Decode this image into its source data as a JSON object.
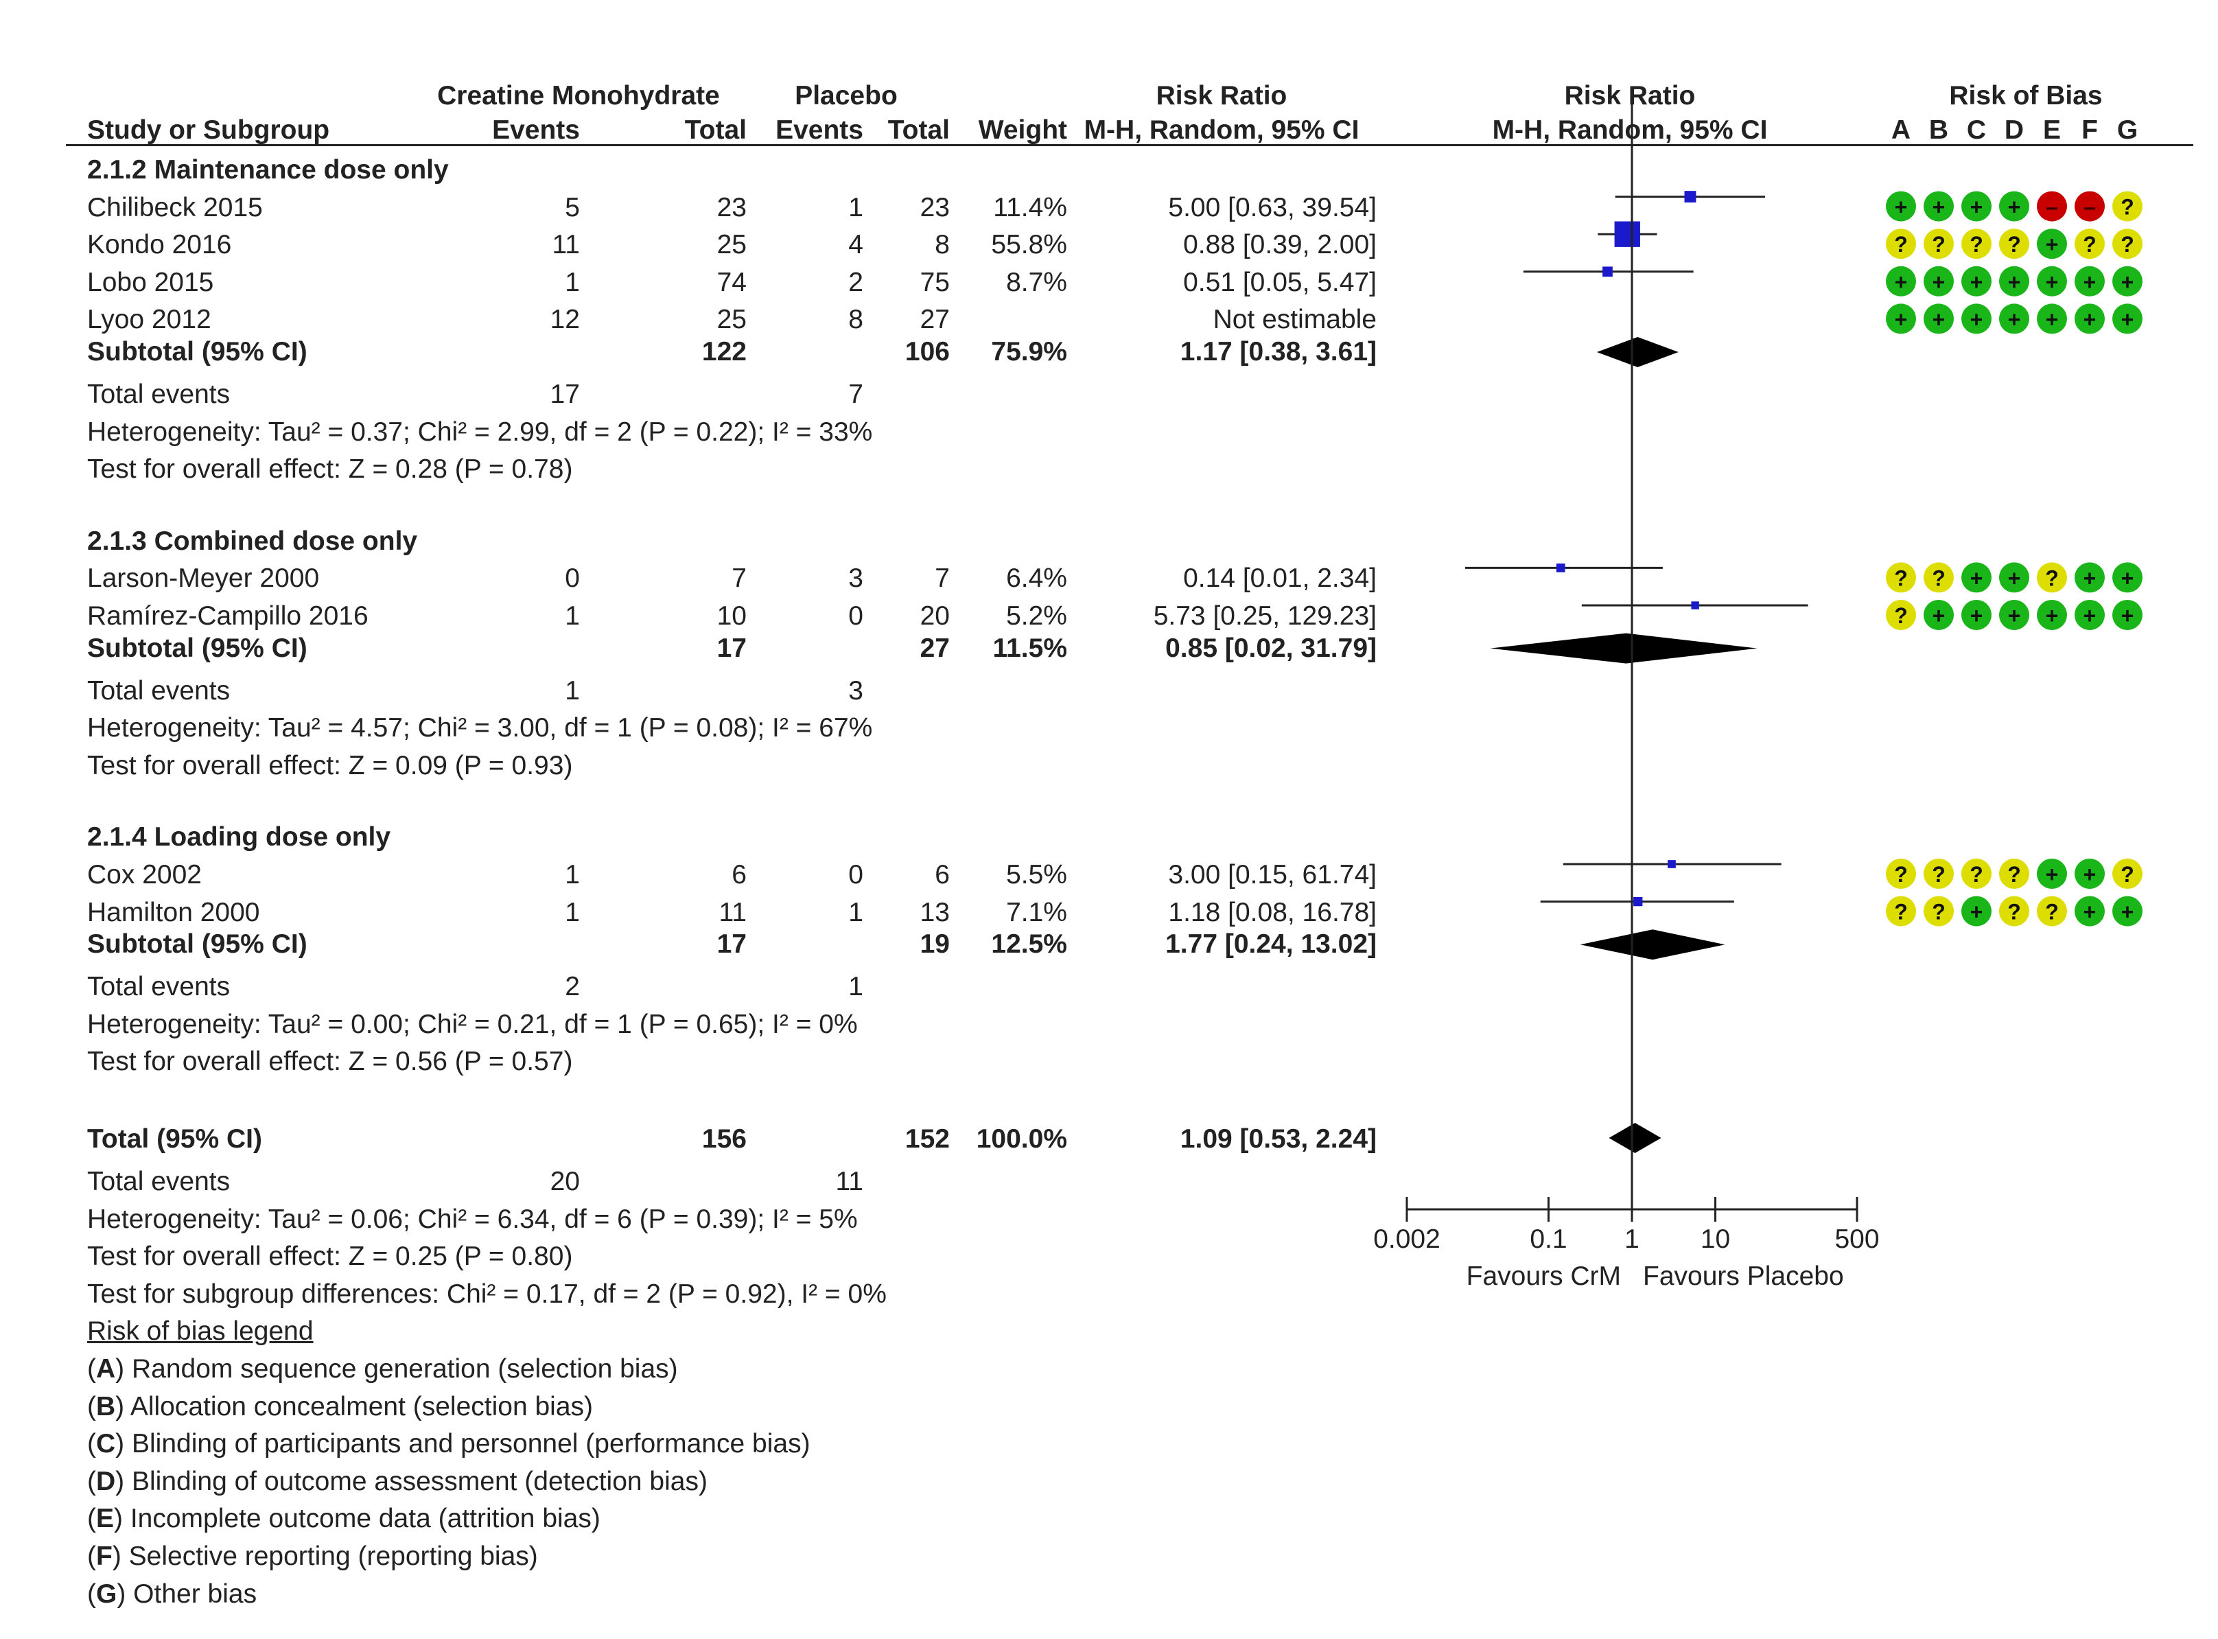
{
  "headers": {
    "study_or_subgroup": "Study or Subgroup",
    "experimental": "Creatine Monohydrate",
    "control": "Placebo",
    "events": "Events",
    "total": "Total",
    "weight": "Weight",
    "risk_ratio": "Risk Ratio",
    "rr_method": "M-H, Random, 95% CI",
    "risk_of_bias": "Risk of Bias",
    "rob_letters": [
      "A",
      "B",
      "C",
      "D",
      "E",
      "F",
      "G"
    ]
  },
  "subgroups": [
    {
      "title": "2.1.2 Maintenance dose only",
      "studies": [
        {
          "name": "Chilibeck 2015",
          "e_events": "5",
          "e_total": "23",
          "c_events": "1",
          "c_total": "23",
          "weight": "11.4%",
          "ci_text": "5.00 [0.63, 39.54]",
          "rr": 5.0,
          "lo": 0.63,
          "hi": 39.54,
          "w": 11.4,
          "rob": [
            "+",
            "+",
            "+",
            "+",
            "-",
            "-",
            "?"
          ]
        },
        {
          "name": "Kondo 2016",
          "e_events": "11",
          "e_total": "25",
          "c_events": "4",
          "c_total": "8",
          "weight": "55.8%",
          "ci_text": "0.88 [0.39, 2.00]",
          "rr": 0.88,
          "lo": 0.39,
          "hi": 2.0,
          "w": 55.8,
          "rob": [
            "?",
            "?",
            "?",
            "?",
            "+",
            "?",
            "?"
          ]
        },
        {
          "name": "Lobo 2015",
          "e_events": "1",
          "e_total": "74",
          "c_events": "2",
          "c_total": "75",
          "weight": "8.7%",
          "ci_text": "0.51 [0.05, 5.47]",
          "rr": 0.51,
          "lo": 0.05,
          "hi": 5.47,
          "w": 8.7,
          "rob": [
            "+",
            "+",
            "+",
            "+",
            "+",
            "+",
            "+"
          ]
        },
        {
          "name": "Lyoo 2012",
          "e_events": "12",
          "e_total": "25",
          "c_events": "8",
          "c_total": "27",
          "weight": "",
          "ci_text": "Not estimable",
          "rr": null,
          "lo": null,
          "hi": null,
          "w": 0,
          "rob": [
            "+",
            "+",
            "+",
            "+",
            "+",
            "+",
            "+"
          ]
        }
      ],
      "subtotal": {
        "label": "Subtotal (95% CI)",
        "e_total": "122",
        "c_total": "106",
        "weight": "75.9%",
        "ci_text": "1.17 [0.38, 3.61]",
        "rr": 1.17,
        "lo": 0.38,
        "hi": 3.61
      },
      "total_events": {
        "label": "Total events",
        "e": "17",
        "c": "7"
      },
      "heterogeneity": "Heterogeneity: Tau² = 0.37; Chi² = 2.99, df = 2 (P = 0.22); I² = 33%",
      "overall": "Test for overall effect: Z = 0.28 (P = 0.78)"
    },
    {
      "title": "2.1.3 Combined dose only",
      "studies": [
        {
          "name": "Larson-Meyer 2000",
          "e_events": "0",
          "e_total": "7",
          "c_events": "3",
          "c_total": "7",
          "weight": "6.4%",
          "ci_text": "0.14 [0.01, 2.34]",
          "rr": 0.14,
          "lo": 0.01,
          "hi": 2.34,
          "w": 6.4,
          "rob": [
            "?",
            "?",
            "+",
            "+",
            "?",
            "+",
            "+"
          ]
        },
        {
          "name": "Ramírez-Campillo 2016",
          "e_events": "1",
          "e_total": "10",
          "c_events": "0",
          "c_total": "20",
          "weight": "5.2%",
          "ci_text": "5.73 [0.25, 129.23]",
          "rr": 5.73,
          "lo": 0.25,
          "hi": 129.23,
          "w": 5.2,
          "rob": [
            "?",
            "+",
            "+",
            "+",
            "+",
            "+",
            "+"
          ]
        }
      ],
      "subtotal": {
        "label": "Subtotal (95% CI)",
        "e_total": "17",
        "c_total": "27",
        "weight": "11.5%",
        "ci_text": "0.85 [0.02, 31.79]",
        "rr": 0.85,
        "lo": 0.02,
        "hi": 31.79
      },
      "total_events": {
        "label": "Total events",
        "e": "1",
        "c": "3"
      },
      "heterogeneity": "Heterogeneity: Tau² = 4.57; Chi² = 3.00, df = 1 (P = 0.08); I² = 67%",
      "overall": "Test for overall effect: Z = 0.09 (P = 0.93)"
    },
    {
      "title": "2.1.4 Loading dose only",
      "studies": [
        {
          "name": "Cox 2002",
          "e_events": "1",
          "e_total": "6",
          "c_events": "0",
          "c_total": "6",
          "weight": "5.5%",
          "ci_text": "3.00 [0.15, 61.74]",
          "rr": 3.0,
          "lo": 0.15,
          "hi": 61.74,
          "w": 5.5,
          "rob": [
            "?",
            "?",
            "?",
            "?",
            "+",
            "+",
            "?"
          ]
        },
        {
          "name": "Hamilton 2000",
          "e_events": "1",
          "e_total": "11",
          "c_events": "1",
          "c_total": "13",
          "weight": "7.1%",
          "ci_text": "1.18 [0.08, 16.78]",
          "rr": 1.18,
          "lo": 0.08,
          "hi": 16.78,
          "w": 7.1,
          "rob": [
            "?",
            "?",
            "+",
            "?",
            "?",
            "+",
            "+"
          ]
        }
      ],
      "subtotal": {
        "label": "Subtotal (95% CI)",
        "e_total": "17",
        "c_total": "19",
        "weight": "12.5%",
        "ci_text": "1.77 [0.24, 13.02]",
        "rr": 1.77,
        "lo": 0.24,
        "hi": 13.02
      },
      "total_events": {
        "label": "Total events",
        "e": "2",
        "c": "1"
      },
      "heterogeneity": "Heterogeneity: Tau² = 0.00; Chi² = 0.21, df = 1 (P = 0.65); I² = 0%",
      "overall": "Test for overall effect: Z = 0.56 (P = 0.57)"
    }
  ],
  "overall": {
    "label": "Total (95% CI)",
    "e_total": "156",
    "c_total": "152",
    "weight": "100.0%",
    "ci_text": "1.09 [0.53, 2.24]",
    "rr": 1.09,
    "lo": 0.53,
    "hi": 2.24,
    "total_events": {
      "label": "Total events",
      "e": "20",
      "c": "11"
    },
    "heterogeneity": "Heterogeneity: Tau² = 0.06; Chi² = 6.34, df = 6 (P = 0.39); I² = 5%",
    "overall_effect": "Test for overall effect: Z = 0.25 (P = 0.80)",
    "subgroup_diff": "Test for subgroup differences: Chi² = 0.17, df = 2 (P = 0.92), I² = 0%"
  },
  "axis": {
    "ticks": [
      "0.002",
      "0.1",
      "1",
      "10",
      "500"
    ],
    "tick_values": [
      0.002,
      0.1,
      1,
      10,
      500
    ],
    "favours_left": "Favours CrM",
    "favours_right": "Favours Placebo"
  },
  "legend": {
    "title": "Risk of bias legend",
    "items": [
      {
        "letter": "A",
        "text": "Random sequence generation (selection bias)"
      },
      {
        "letter": "B",
        "text": "Allocation concealment (selection bias)"
      },
      {
        "letter": "C",
        "text": "Blinding of participants and personnel (performance bias)"
      },
      {
        "letter": "D",
        "text": "Blinding of outcome assessment (detection bias)"
      },
      {
        "letter": "E",
        "text": "Incomplete outcome data (attrition bias)"
      },
      {
        "letter": "F",
        "text": "Selective reporting (reporting bias)"
      },
      {
        "letter": "G",
        "text": "Other bias"
      }
    ]
  },
  "chart_data": {
    "type": "forest",
    "title": "Risk Ratio M-H, Random, 95% CI",
    "xscale": "log",
    "xlim": [
      0.002,
      500
    ],
    "null_line": 1,
    "xlabel_left": "Favours CrM",
    "xlabel_right": "Favours Placebo",
    "studies": [
      {
        "name": "Chilibeck 2015",
        "rr": 5.0,
        "lo": 0.63,
        "hi": 39.54,
        "weight": 11.4
      },
      {
        "name": "Kondo 2016",
        "rr": 0.88,
        "lo": 0.39,
        "hi": 2.0,
        "weight": 55.8
      },
      {
        "name": "Lobo 2015",
        "rr": 0.51,
        "lo": 0.05,
        "hi": 5.47,
        "weight": 8.7
      },
      {
        "name": "Lyoo 2012",
        "rr": null,
        "lo": null,
        "hi": null,
        "weight": null
      },
      {
        "name": "Larson-Meyer 2000",
        "rr": 0.14,
        "lo": 0.01,
        "hi": 2.34,
        "weight": 6.4
      },
      {
        "name": "Ramírez-Campillo 2016",
        "rr": 5.73,
        "lo": 0.25,
        "hi": 129.23,
        "weight": 5.2
      },
      {
        "name": "Cox 2002",
        "rr": 3.0,
        "lo": 0.15,
        "hi": 61.74,
        "weight": 5.5
      },
      {
        "name": "Hamilton 2000",
        "rr": 1.18,
        "lo": 0.08,
        "hi": 16.78,
        "weight": 7.1
      }
    ],
    "subtotals": [
      {
        "name": "2.1.2 Maintenance dose only",
        "rr": 1.17,
        "lo": 0.38,
        "hi": 3.61
      },
      {
        "name": "2.1.3 Combined dose only",
        "rr": 0.85,
        "lo": 0.02,
        "hi": 31.79
      },
      {
        "name": "2.1.4 Loading dose only",
        "rr": 1.77,
        "lo": 0.24,
        "hi": 13.02
      }
    ],
    "overall": {
      "rr": 1.09,
      "lo": 0.53,
      "hi": 2.24
    },
    "colors": {
      "box": "#1a1acc",
      "diamond": "#000000",
      "plus": "#19b519",
      "question": "#dddd00",
      "minus": "#c80000"
    }
  }
}
